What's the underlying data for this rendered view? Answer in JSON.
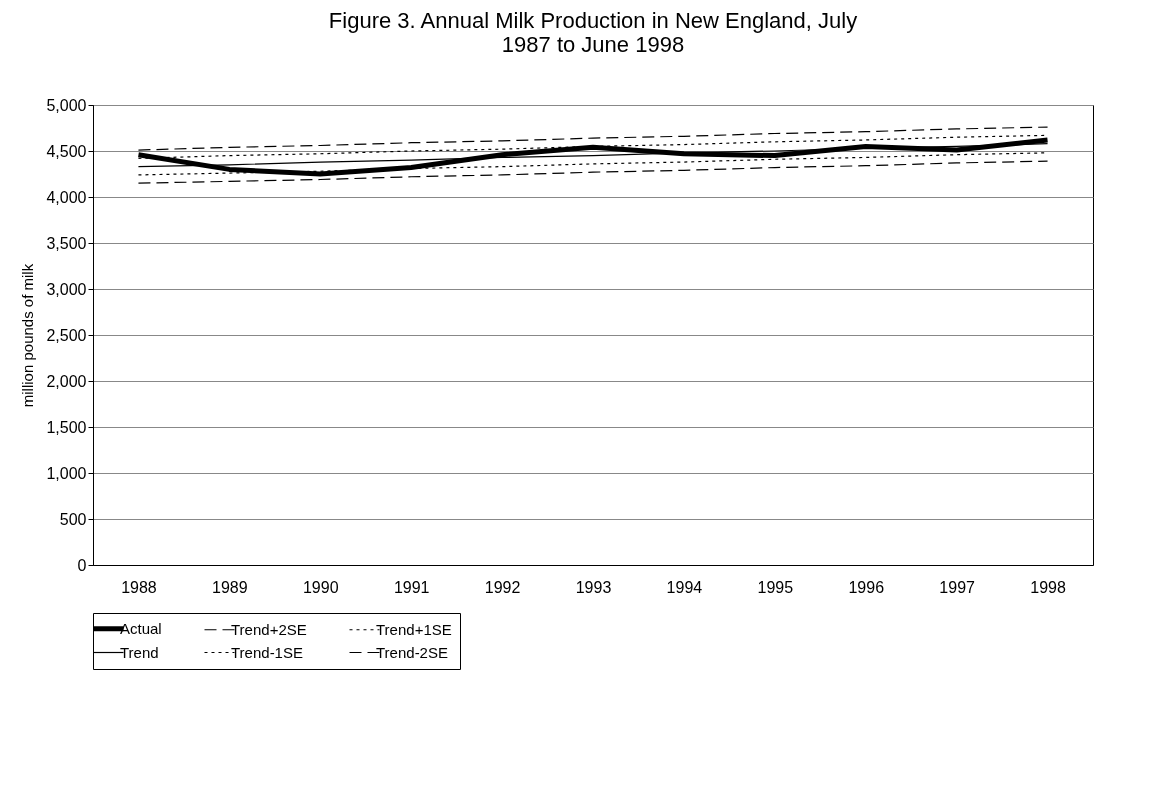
{
  "chart_data": {
    "type": "line",
    "title": "Figure 3.  Annual Milk Production in New England, July 1987 to June 1998",
    "ylabel": "million pounds of milk",
    "categories": [
      "1988",
      "1989",
      "1990",
      "1991",
      "1992",
      "1993",
      "1994",
      "1995",
      "1996",
      "1997",
      "1998"
    ],
    "series": [
      {
        "name": "Actual",
        "color": "#000000",
        "line_style": "solid",
        "values": [
          4460,
          4300,
          4250,
          4320,
          4460,
          4540,
          4470,
          4450,
          4550,
          4510,
          4620
        ]
      },
      {
        "name": "Trend+2SE",
        "color": "#000000",
        "line_style": "dashed",
        "values": [
          4510,
          4540,
          4560,
          4590,
          4610,
          4640,
          4660,
          4690,
          4710,
          4740,
          4760
        ]
      },
      {
        "name": "Trend+1SE",
        "color": "#000000",
        "line_style": "dotted",
        "values": [
          4420,
          4450,
          4470,
          4500,
          4520,
          4550,
          4570,
          4600,
          4620,
          4650,
          4670
        ]
      },
      {
        "name": "Trend",
        "color": "#000000",
        "line_style": "solid",
        "values": [
          4330,
          4350,
          4380,
          4400,
          4430,
          4450,
          4480,
          4500,
          4530,
          4550,
          4580
        ]
      },
      {
        "name": "Trend-1SE",
        "color": "#000000",
        "line_style": "dotted",
        "values": [
          4240,
          4260,
          4280,
          4310,
          4330,
          4360,
          4380,
          4410,
          4430,
          4460,
          4480
        ]
      },
      {
        "name": "Trend-2SE",
        "color": "#000000",
        "line_style": "dashed",
        "values": [
          4150,
          4170,
          4190,
          4220,
          4240,
          4270,
          4290,
          4320,
          4340,
          4370,
          4390
        ]
      }
    ],
    "ylim": [
      0,
      5000
    ],
    "yticks": [
      0,
      500,
      {
        "value": 1000,
        "label": "1,000"
      },
      {
        "value": 1500,
        "label": "1,500"
      },
      {
        "value": 2000,
        "label": "2,000"
      },
      {
        "value": 2500,
        "label": "2,500"
      },
      {
        "value": 3000,
        "label": "3,000"
      },
      {
        "value": 3500,
        "label": "3,500"
      },
      {
        "value": 4000,
        "label": "4,000"
      },
      {
        "value": 4500,
        "label": "4,500"
      },
      {
        "value": 5000,
        "label": "5,000"
      }
    ],
    "grid": "y",
    "legend": "bottom"
  }
}
